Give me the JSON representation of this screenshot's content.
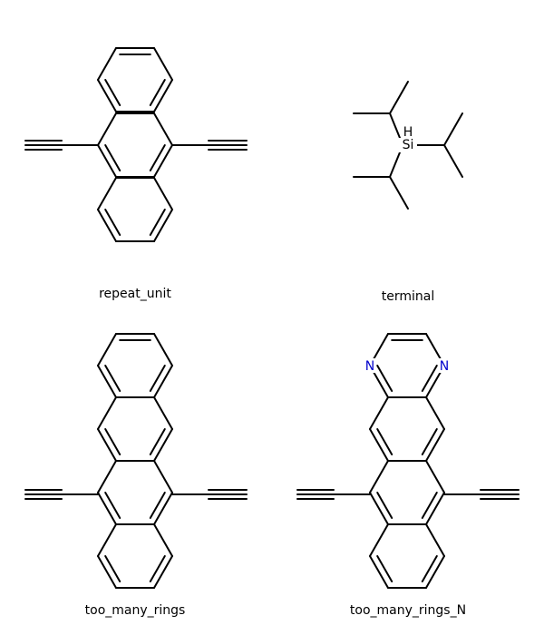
{
  "molecules": [
    {
      "label": "repeat_unit"
    },
    {
      "label": "terminal",
      "atoms": [
        "H",
        "Si"
      ]
    },
    {
      "label": "too_many_rings"
    },
    {
      "label": "too_many_rings_N",
      "atoms": [
        "N",
        "N"
      ]
    }
  ]
}
